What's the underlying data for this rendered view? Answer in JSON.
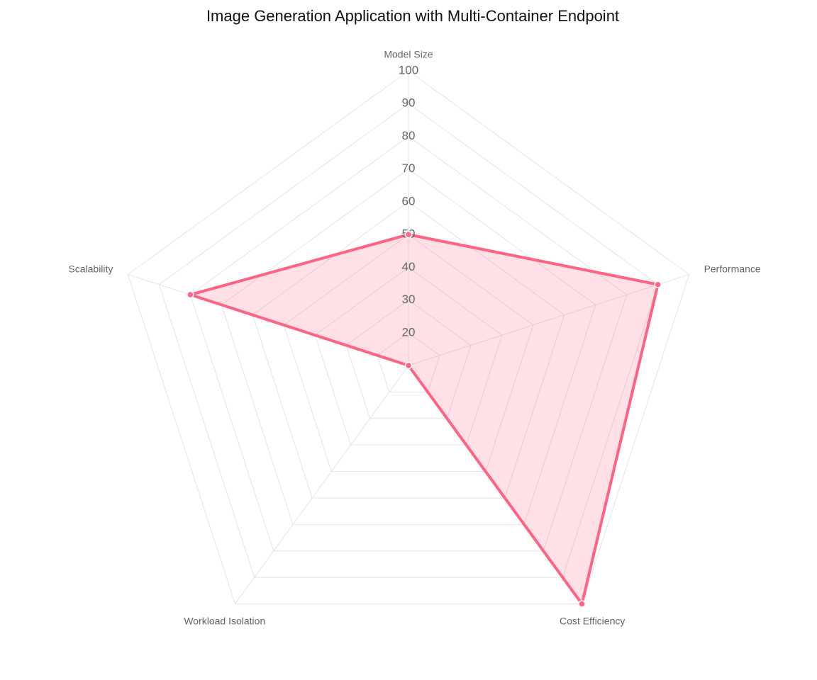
{
  "chart_data": {
    "type": "radar",
    "title": "Image Generation Application with Multi-Container Endpoint",
    "categories": [
      "Model Size",
      "Performance",
      "Cost Efficiency",
      "Workload Isolation",
      "Scalability"
    ],
    "values": [
      50,
      90,
      100,
      10,
      80
    ],
    "color": "#ff6384",
    "ylim": [
      10,
      100
    ],
    "yticks": [
      20,
      30,
      40,
      50,
      60,
      70,
      80,
      90,
      100
    ],
    "grid": true
  }
}
